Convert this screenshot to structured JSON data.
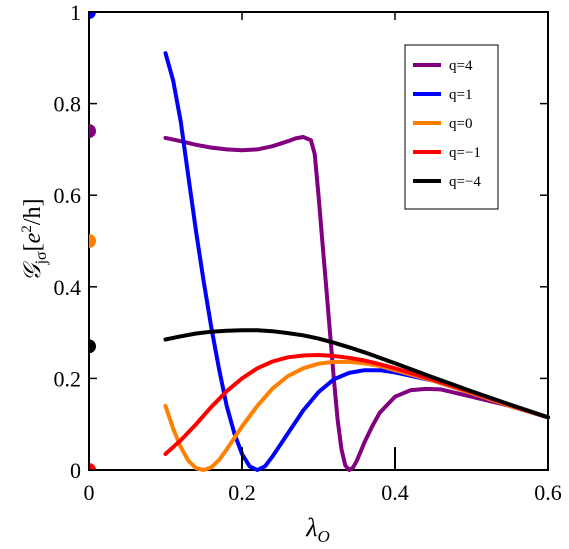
{
  "chart_data": {
    "type": "line",
    "xlabel": "λ",
    "xlabel_sub": "O",
    "ylabel_main": "𝒢",
    "ylabel_sub": "jσ",
    "ylabel_unit_open": "[",
    "ylabel_unit_e": "e",
    "ylabel_unit_sup": "2",
    "ylabel_unit_close": "/h]",
    "xlim": [
      0,
      0.6
    ],
    "ylim": [
      0,
      1
    ],
    "x_ticks": [
      0,
      0.2,
      0.4,
      0.6
    ],
    "x_tick_labels": [
      "0",
      "0.2",
      "0.4",
      "0.6"
    ],
    "y_ticks": [
      0,
      0.2,
      0.4,
      0.6,
      0.8,
      1
    ],
    "y_tick_labels": [
      "0",
      "0.2",
      "0.4",
      "0.6",
      "0.8",
      "1"
    ],
    "grid": false,
    "legend_position": "top-right",
    "series": [
      {
        "name": "q=4",
        "color": "#800080",
        "points": [
          [
            0.1,
            0.725
          ],
          [
            0.12,
            0.718
          ],
          [
            0.14,
            0.71
          ],
          [
            0.16,
            0.704
          ],
          [
            0.18,
            0.7
          ],
          [
            0.2,
            0.698
          ],
          [
            0.22,
            0.7
          ],
          [
            0.24,
            0.707
          ],
          [
            0.26,
            0.718
          ],
          [
            0.27,
            0.724
          ],
          [
            0.28,
            0.727
          ],
          [
            0.29,
            0.72
          ],
          [
            0.295,
            0.69
          ],
          [
            0.3,
            0.6
          ],
          [
            0.305,
            0.5
          ],
          [
            0.31,
            0.4
          ],
          [
            0.315,
            0.3
          ],
          [
            0.32,
            0.2
          ],
          [
            0.325,
            0.11
          ],
          [
            0.33,
            0.045
          ],
          [
            0.335,
            0.01
          ],
          [
            0.34,
            0.0
          ],
          [
            0.345,
            0.005
          ],
          [
            0.35,
            0.02
          ],
          [
            0.36,
            0.06
          ],
          [
            0.37,
            0.095
          ],
          [
            0.38,
            0.125
          ],
          [
            0.4,
            0.16
          ],
          [
            0.42,
            0.174
          ],
          [
            0.44,
            0.177
          ],
          [
            0.46,
            0.176
          ],
          [
            0.5,
            0.16
          ],
          [
            0.55,
            0.14
          ],
          [
            0.6,
            0.115
          ]
        ],
        "dot_at_zero": 0.74
      },
      {
        "name": "q=1",
        "color": "#0000ff",
        "points": [
          [
            0.1,
            0.91
          ],
          [
            0.11,
            0.85
          ],
          [
            0.12,
            0.76
          ],
          [
            0.13,
            0.64
          ],
          [
            0.14,
            0.52
          ],
          [
            0.15,
            0.41
          ],
          [
            0.16,
            0.31
          ],
          [
            0.17,
            0.22
          ],
          [
            0.18,
            0.14
          ],
          [
            0.19,
            0.08
          ],
          [
            0.2,
            0.035
          ],
          [
            0.21,
            0.008
          ],
          [
            0.22,
            0.0
          ],
          [
            0.23,
            0.008
          ],
          [
            0.24,
            0.03
          ],
          [
            0.26,
            0.08
          ],
          [
            0.28,
            0.13
          ],
          [
            0.3,
            0.17
          ],
          [
            0.32,
            0.198
          ],
          [
            0.34,
            0.212
          ],
          [
            0.36,
            0.218
          ],
          [
            0.38,
            0.218
          ],
          [
            0.4,
            0.213
          ],
          [
            0.45,
            0.195
          ],
          [
            0.5,
            0.168
          ],
          [
            0.55,
            0.14
          ],
          [
            0.6,
            0.115
          ]
        ],
        "dot_at_zero": 1.0
      },
      {
        "name": "q=0",
        "color": "#ff8000",
        "points": [
          [
            0.1,
            0.14
          ],
          [
            0.11,
            0.09
          ],
          [
            0.12,
            0.05
          ],
          [
            0.13,
            0.02
          ],
          [
            0.14,
            0.004
          ],
          [
            0.15,
            0.0
          ],
          [
            0.16,
            0.006
          ],
          [
            0.17,
            0.022
          ],
          [
            0.18,
            0.045
          ],
          [
            0.2,
            0.095
          ],
          [
            0.22,
            0.14
          ],
          [
            0.24,
            0.178
          ],
          [
            0.26,
            0.205
          ],
          [
            0.28,
            0.222
          ],
          [
            0.3,
            0.232
          ],
          [
            0.32,
            0.236
          ],
          [
            0.34,
            0.236
          ],
          [
            0.36,
            0.233
          ],
          [
            0.38,
            0.227
          ],
          [
            0.4,
            0.218
          ],
          [
            0.45,
            0.195
          ],
          [
            0.5,
            0.168
          ],
          [
            0.55,
            0.14
          ],
          [
            0.6,
            0.115
          ]
        ],
        "dot_at_zero": 0.5
      },
      {
        "name": "q=−1",
        "color": "#ff0000",
        "points": [
          [
            0.1,
            0.035
          ],
          [
            0.12,
            0.065
          ],
          [
            0.14,
            0.1
          ],
          [
            0.16,
            0.138
          ],
          [
            0.18,
            0.172
          ],
          [
            0.2,
            0.2
          ],
          [
            0.22,
            0.222
          ],
          [
            0.24,
            0.237
          ],
          [
            0.26,
            0.246
          ],
          [
            0.28,
            0.25
          ],
          [
            0.3,
            0.251
          ],
          [
            0.32,
            0.249
          ],
          [
            0.34,
            0.245
          ],
          [
            0.36,
            0.239
          ],
          [
            0.38,
            0.231
          ],
          [
            0.4,
            0.222
          ],
          [
            0.45,
            0.197
          ],
          [
            0.5,
            0.17
          ],
          [
            0.55,
            0.142
          ],
          [
            0.6,
            0.115
          ]
        ],
        "dot_at_zero": 0.0
      },
      {
        "name": "q=−4",
        "color": "#000000",
        "points": [
          [
            0.1,
            0.285
          ],
          [
            0.12,
            0.292
          ],
          [
            0.14,
            0.298
          ],
          [
            0.16,
            0.302
          ],
          [
            0.18,
            0.304
          ],
          [
            0.2,
            0.305
          ],
          [
            0.22,
            0.305
          ],
          [
            0.24,
            0.303
          ],
          [
            0.26,
            0.299
          ],
          [
            0.28,
            0.294
          ],
          [
            0.3,
            0.287
          ],
          [
            0.32,
            0.278
          ],
          [
            0.34,
            0.268
          ],
          [
            0.36,
            0.257
          ],
          [
            0.38,
            0.245
          ],
          [
            0.4,
            0.233
          ],
          [
            0.45,
            0.202
          ],
          [
            0.5,
            0.172
          ],
          [
            0.55,
            0.143
          ],
          [
            0.6,
            0.115
          ]
        ],
        "dot_at_zero": 0.27
      }
    ],
    "vertical_markers": [
      {
        "x": 0.2,
        "y_top": 0.05,
        "color": "#000000"
      },
      {
        "x": 0.4,
        "y_top": 0.05,
        "color": "#000000"
      }
    ]
  }
}
